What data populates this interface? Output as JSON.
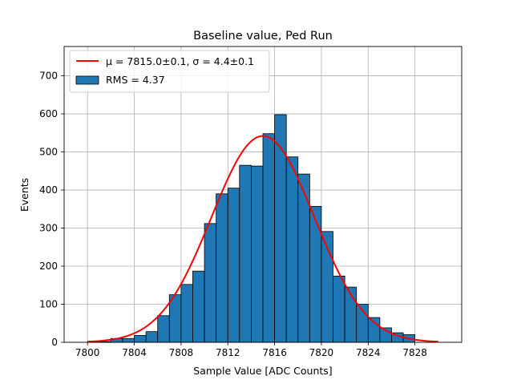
{
  "chart_data": {
    "type": "histogram",
    "title": "Baseline value, Ped Run",
    "xlabel": "Sample Value [ADC Counts]",
    "ylabel": "Events",
    "xlim": [
      7798,
      7832
    ],
    "ylim": [
      0,
      777
    ],
    "grid": true,
    "legend_position": "upper-left",
    "xticks": [
      7800,
      7804,
      7808,
      7812,
      7816,
      7820,
      7824,
      7828
    ],
    "yticks": [
      0,
      100,
      200,
      300,
      400,
      500,
      600,
      700
    ],
    "histogram": {
      "label": "RMS = 4.37",
      "color": "#1f77b4",
      "edge_color": "#000000",
      "bin_edges": [
        7800,
        7801,
        7802,
        7803,
        7804,
        7805,
        7806,
        7807,
        7808,
        7809,
        7810,
        7811,
        7812,
        7813,
        7814,
        7815,
        7816,
        7817,
        7818,
        7819,
        7820,
        7821,
        7822,
        7823,
        7824,
        7825,
        7826,
        7827,
        7828,
        7829
      ],
      "counts": [
        2,
        2,
        10,
        10,
        18,
        28,
        70,
        125,
        152,
        187,
        312,
        390,
        405,
        465,
        463,
        548,
        598,
        487,
        442,
        357,
        291,
        174,
        145,
        100,
        65,
        38,
        25,
        20,
        0
      ]
    },
    "fit": {
      "label_prefix": "μ = 7815.0±0.1, ",
      "label_sigma": "σ = 4.4±0.1",
      "color": "#ff0000",
      "mu": 7815.0,
      "sigma": 4.4,
      "amplitude": 542,
      "x_range": [
        7800,
        7830
      ]
    }
  }
}
